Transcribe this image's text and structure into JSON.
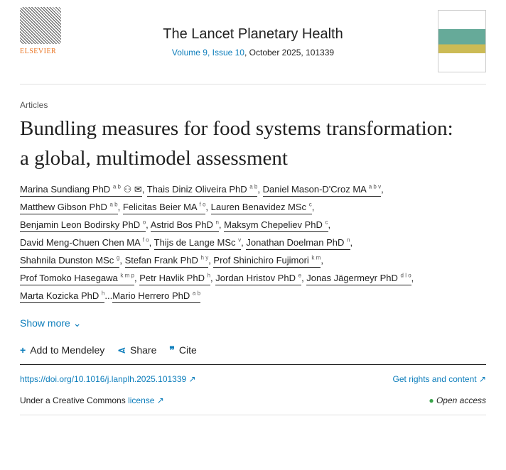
{
  "header": {
    "publisher": "ELSEVIER",
    "journal": "The Lancet Planetary Health",
    "volume_issue": "Volume 9, Issue 10",
    "date_id": ", October 2025, 101339"
  },
  "article_type": "Articles",
  "title": "Bundling measures for food systems transformation: a global, multimodel assessment",
  "authors": [
    {
      "name": "Marina Sundiang PhD",
      "aff": "a b"
    },
    {
      "name": "Thais Diniz Oliveira PhD",
      "aff": "a b"
    },
    {
      "name": "Daniel Mason-D'Croz MA",
      "aff": "a b v"
    },
    {
      "name": "Matthew Gibson PhD",
      "aff": "a b"
    },
    {
      "name": "Felicitas Beier MA",
      "aff": "f o"
    },
    {
      "name": "Lauren Benavidez MSc",
      "aff": "c"
    },
    {
      "name": "Benjamin Leon Bodirsky PhD",
      "aff": "o"
    },
    {
      "name": "Astrid Bos PhD",
      "aff": "n"
    },
    {
      "name": "Maksym Chepeliev PhD",
      "aff": "c"
    },
    {
      "name": "David Meng-Chuen Chen MA",
      "aff": "f o"
    },
    {
      "name": "Thijs de Lange MSc",
      "aff": "v"
    },
    {
      "name": "Jonathan Doelman PhD",
      "aff": "n"
    },
    {
      "name": "Shahnila Dunston MSc",
      "aff": "g"
    },
    {
      "name": "Stefan Frank PhD",
      "aff": "h y"
    },
    {
      "name": "Prof Shinichiro Fujimori",
      "aff": "k m"
    },
    {
      "name": "Prof Tomoko Hasegawa",
      "aff": "k m p"
    },
    {
      "name": "Petr Havlik PhD",
      "aff": "h"
    },
    {
      "name": "Jordan Hristov PhD",
      "aff": "e"
    },
    {
      "name": "Jonas Jägermeyr PhD",
      "aff": "d l o"
    },
    {
      "name": "Marta Kozicka PhD",
      "aff": "h"
    },
    {
      "name": "Mario Herrero PhD",
      "aff": "a b"
    }
  ],
  "ellipsis": "...",
  "show_more": "Show more",
  "tools": {
    "mendeley": "Add to Mendeley",
    "share": "Share",
    "cite": "Cite"
  },
  "doi": "https://doi.org/10.1016/j.lanplh.2025.101339",
  "rights": "Get rights and content",
  "license_prefix": "Under a Creative Commons ",
  "license": "license",
  "open_access": "Open access",
  "colors": {
    "link": "#0c7dbb",
    "open_access": "#3aa34a",
    "elsevier": "#e9711c"
  }
}
